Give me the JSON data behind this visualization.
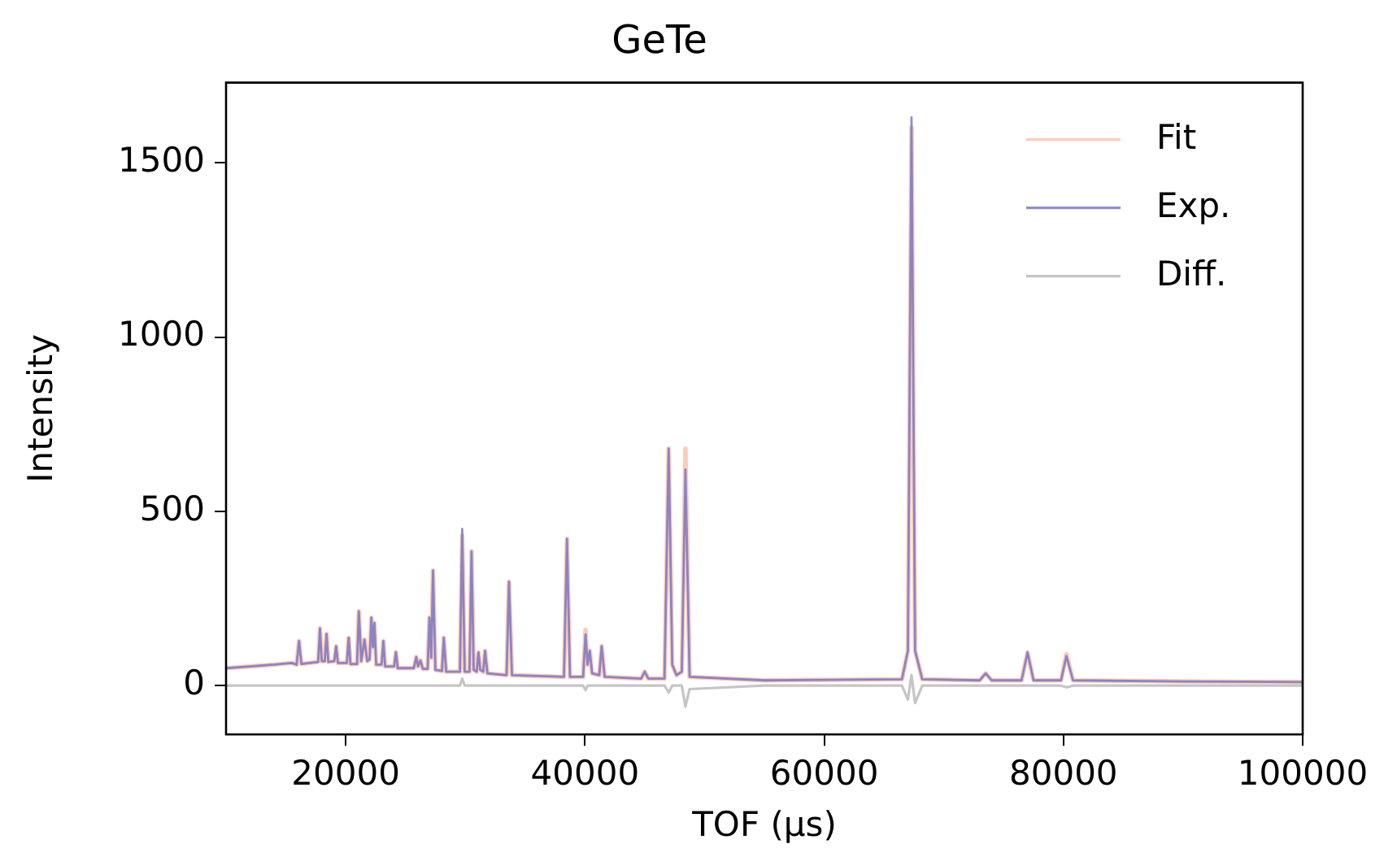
{
  "chart_data": {
    "type": "line",
    "title": "GeTe",
    "xlabel": "TOF (μs)",
    "ylabel": "Intensity",
    "x": [
      10000,
      12000,
      14000,
      15500,
      15900,
      16100,
      16300,
      17000,
      17700,
      17850,
      18000,
      18250,
      18400,
      18550,
      19050,
      19200,
      19350,
      20100,
      20250,
      20400,
      20950,
      21100,
      21300,
      21570,
      21800,
      22000,
      22150,
      22280,
      22400,
      22550,
      23000,
      23150,
      23300,
      24050,
      24200,
      24350,
      25700,
      25900,
      26050,
      26250,
      26450,
      26850,
      27000,
      27150,
      27300,
      27500,
      28050,
      28200,
      28400,
      29550,
      29740,
      29950,
      30350,
      30520,
      30700,
      30950,
      31100,
      31250,
      31500,
      31650,
      31850,
      33450,
      33650,
      33900,
      38250,
      38500,
      38750,
      39850,
      40050,
      40220,
      40400,
      40600,
      41200,
      41400,
      41650,
      44700,
      45000,
      45300,
      46650,
      47000,
      47300,
      47650,
      48100,
      48400,
      48750,
      55000,
      66500,
      67000,
      67300,
      67600,
      68200,
      73000,
      73500,
      74000,
      76500,
      77000,
      77500,
      79800,
      80250,
      80800,
      90000,
      100000
    ],
    "series": [
      {
        "name": "Fit",
        "color": "#fbb89c",
        "values": [
          50,
          55,
          60,
          65,
          60,
          128,
          62,
          65,
          68,
          164,
          70,
          70,
          148,
          68,
          70,
          113,
          65,
          65,
          137,
          62,
          62,
          213,
          70,
          132,
          70,
          75,
          195,
          110,
          180,
          60,
          60,
          128,
          55,
          55,
          96,
          50,
          50,
          82,
          55,
          72,
          48,
          48,
          195,
          80,
          330,
          45,
          42,
          137,
          40,
          40,
          430,
          40,
          40,
          385,
          45,
          40,
          95,
          45,
          40,
          100,
          35,
          30,
          298,
          30,
          25,
          421,
          25,
          25,
          160,
          60,
          100,
          35,
          30,
          113,
          25,
          20,
          40,
          20,
          20,
          680,
          60,
          30,
          40,
          680,
          25,
          15,
          18,
          100,
          1600,
          100,
          18,
          15,
          35,
          15,
          15,
          95,
          15,
          15,
          90,
          15,
          12,
          10
        ]
      },
      {
        "name": "Exp.",
        "color": "#6a6ac4",
        "values": [
          50,
          55,
          60,
          65,
          60,
          128,
          62,
          65,
          68,
          164,
          70,
          70,
          148,
          68,
          70,
          113,
          65,
          65,
          137,
          62,
          62,
          213,
          70,
          132,
          70,
          75,
          195,
          110,
          180,
          60,
          60,
          128,
          55,
          55,
          96,
          50,
          50,
          82,
          55,
          72,
          48,
          48,
          195,
          80,
          330,
          45,
          42,
          137,
          40,
          40,
          450,
          40,
          40,
          385,
          45,
          40,
          95,
          45,
          40,
          100,
          35,
          30,
          298,
          30,
          25,
          421,
          25,
          25,
          147,
          60,
          100,
          35,
          30,
          113,
          25,
          20,
          40,
          20,
          20,
          680,
          60,
          30,
          40,
          620,
          25,
          15,
          18,
          100,
          1630,
          100,
          18,
          15,
          35,
          15,
          15,
          95,
          15,
          15,
          85,
          15,
          12,
          10
        ]
      },
      {
        "name": "Diff.",
        "color": "#bfbfbf",
        "values": [
          0,
          0,
          0,
          0,
          0,
          0,
          0,
          0,
          0,
          0,
          0,
          0,
          0,
          0,
          0,
          0,
          0,
          0,
          0,
          0,
          0,
          0,
          0,
          0,
          0,
          0,
          0,
          0,
          0,
          0,
          0,
          0,
          0,
          0,
          0,
          0,
          0,
          0,
          0,
          0,
          0,
          0,
          0,
          0,
          0,
          0,
          0,
          0,
          0,
          0,
          20,
          0,
          0,
          0,
          0,
          0,
          0,
          0,
          0,
          0,
          0,
          0,
          0,
          0,
          0,
          0,
          0,
          0,
          -13,
          0,
          0,
          0,
          0,
          0,
          0,
          0,
          0,
          0,
          0,
          -20,
          0,
          0,
          0,
          -60,
          -10,
          0,
          0,
          -40,
          30,
          -50,
          0,
          0,
          0,
          0,
          0,
          0,
          0,
          0,
          -5,
          0,
          0,
          0
        ]
      }
    ],
    "xlim": [
      10000,
      100000
    ],
    "xticks": [
      20000,
      40000,
      60000,
      80000,
      100000
    ],
    "ylim": [
      -140,
      1730
    ],
    "yticks": [
      0,
      500,
      1000,
      1500
    ],
    "grid": false,
    "legend": "top right",
    "marker": "none",
    "line_style": "solid"
  }
}
